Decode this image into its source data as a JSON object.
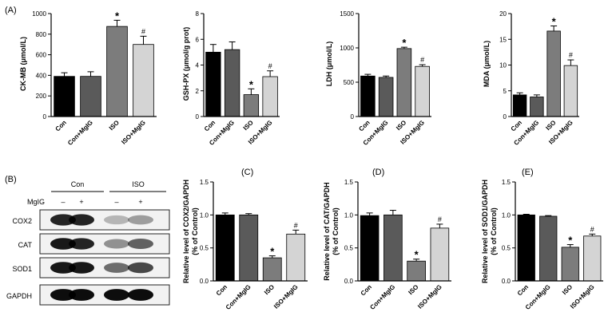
{
  "panel_labels": {
    "A": "(A)",
    "B": "(B)",
    "C": "(C)",
    "D": "(D)",
    "E": "(E)"
  },
  "colors": {
    "Con": "#000000",
    "Con+MgIG": "#5a5a5a",
    "ISO": "#7c7c7c",
    "ISO+MgIG": "#d4d4d4"
  },
  "chart_data": [
    {
      "type": "bar",
      "panel": "A",
      "categories": [
        "Con",
        "Con+MgIG",
        "ISO",
        "ISO+MgIG"
      ],
      "values": [
        390,
        390,
        875,
        700
      ],
      "errors": [
        35,
        45,
        60,
        80
      ],
      "marks": [
        "",
        "",
        "*",
        "#"
      ],
      "ylabel": "CK-MB (μmol/L)",
      "ylim": [
        0,
        1000
      ],
      "yticks": [
        "0",
        "200",
        "400",
        "600",
        "800",
        "1000"
      ]
    },
    {
      "type": "bar",
      "panel": "A",
      "categories": [
        "Con",
        "Con+MgIG",
        "ISO",
        "ISO+MgIG"
      ],
      "values": [
        5.0,
        5.2,
        1.7,
        3.1
      ],
      "errors": [
        0.6,
        0.6,
        0.45,
        0.45
      ],
      "marks": [
        "",
        "",
        "*",
        "#"
      ],
      "ylabel": "GSH-PX (μmol/g prot)",
      "ylim": [
        0,
        8
      ],
      "yticks": [
        "0",
        "2",
        "4",
        "6",
        "8"
      ]
    },
    {
      "type": "bar",
      "panel": "A",
      "categories": [
        "Con",
        "Con+MgIG",
        "ISO",
        "ISO+MgIG"
      ],
      "values": [
        590,
        570,
        990,
        730
      ],
      "errors": [
        25,
        20,
        20,
        25
      ],
      "marks": [
        "",
        "",
        "*",
        "#"
      ],
      "ylabel": "LDH (μmol/L)",
      "ylim": [
        0,
        1500
      ],
      "yticks": [
        "0",
        "500",
        "1000",
        "1500"
      ]
    },
    {
      "type": "bar",
      "panel": "A",
      "categories": [
        "Con",
        "Con+MgIG",
        "ISO",
        "ISO+MgIG"
      ],
      "values": [
        4.2,
        3.8,
        16.6,
        9.9
      ],
      "errors": [
        0.4,
        0.4,
        1.0,
        1.1
      ],
      "marks": [
        "",
        "",
        "*",
        "#"
      ],
      "ylabel": "MDA (μmol/L)",
      "ylim": [
        0,
        20
      ],
      "yticks": [
        "0",
        "5",
        "10",
        "15",
        "20"
      ]
    },
    {
      "type": "bar",
      "panel": "C",
      "categories": [
        "Con",
        "Con+MgIG",
        "ISO",
        "ISO+MgIG"
      ],
      "values": [
        1.0,
        1.0,
        0.35,
        0.71
      ],
      "errors": [
        0.03,
        0.02,
        0.03,
        0.06
      ],
      "marks": [
        "",
        "",
        "*",
        "#"
      ],
      "ylabel": "Relative level of COX2/GAPDH (% of Control)",
      "ylim": [
        0,
        1.5
      ],
      "yticks": [
        "0.0",
        "0.5",
        "1.0",
        "1.5"
      ]
    },
    {
      "type": "bar",
      "panel": "D",
      "categories": [
        "Con",
        "Con+MgIG",
        "ISO",
        "ISO+MgIG"
      ],
      "values": [
        0.99,
        1.0,
        0.3,
        0.8
      ],
      "errors": [
        0.04,
        0.07,
        0.03,
        0.06
      ],
      "marks": [
        "",
        "",
        "*",
        "#"
      ],
      "ylabel": "Relative level of CAT/GAPDH (% of Control)",
      "ylim": [
        0,
        1.5
      ],
      "yticks": [
        "0.0",
        "0.5",
        "1.0",
        "1.5"
      ]
    },
    {
      "type": "bar",
      "panel": "E",
      "categories": [
        "Con",
        "Con+MgIG",
        "ISO",
        "ISO+MgIG"
      ],
      "values": [
        1.0,
        0.98,
        0.51,
        0.68
      ],
      "errors": [
        0.01,
        0.01,
        0.04,
        0.03
      ],
      "marks": [
        "",
        "",
        "*",
        "#"
      ],
      "ylabel": "Relative level of SOD1/GAPDH (% of Control)",
      "ylim": [
        0,
        1.5
      ],
      "yticks": [
        "0.0",
        "0.5",
        "1.0",
        "1.5"
      ]
    }
  ],
  "blot": {
    "groups": [
      "Con",
      "ISO"
    ],
    "treatment_label": "MgIG",
    "signs": [
      "–",
      "+",
      "–",
      "+"
    ],
    "rows": [
      {
        "label": "COX2",
        "intensities": [
          0.85,
          0.85,
          0.25,
          0.35
        ]
      },
      {
        "label": "CAT",
        "intensities": [
          0.9,
          0.85,
          0.4,
          0.6
        ]
      },
      {
        "label": "SOD1",
        "intensities": [
          0.9,
          0.9,
          0.55,
          0.7
        ]
      },
      {
        "label": "GAPDH",
        "intensities": [
          0.95,
          0.95,
          0.95,
          0.95
        ]
      }
    ]
  }
}
